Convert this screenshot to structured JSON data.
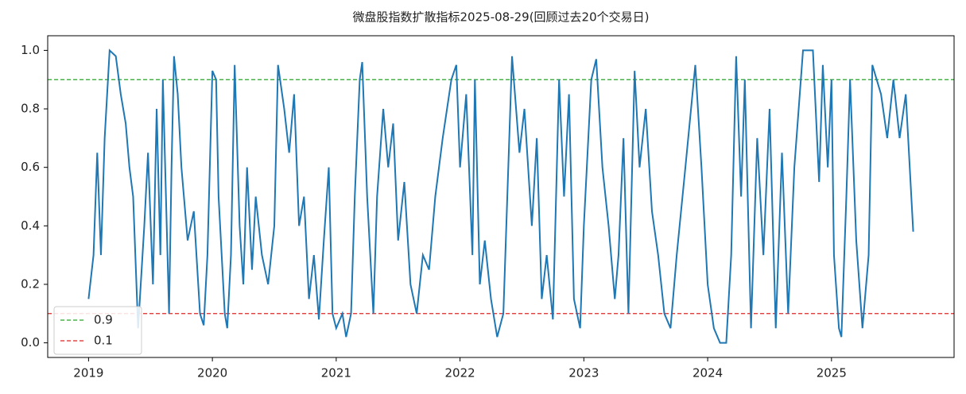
{
  "chart_data": {
    "type": "line",
    "title": "微盘股指数扩散指标2025-08-29(回顾过去20个交易日)",
    "x": [
      2019.0,
      2019.04,
      2019.07,
      2019.1,
      2019.13,
      2019.17,
      2019.22,
      2019.26,
      2019.3,
      2019.33,
      2019.36,
      2019.4,
      2019.45,
      2019.48,
      2019.52,
      2019.55,
      2019.58,
      2019.6,
      2019.65,
      2019.67,
      2019.69,
      2019.72,
      2019.75,
      2019.8,
      2019.85,
      2019.9,
      2019.93,
      2019.96,
      2020.0,
      2020.03,
      2020.05,
      2020.1,
      2020.12,
      2020.15,
      2020.18,
      2020.22,
      2020.25,
      2020.28,
      2020.32,
      2020.35,
      2020.4,
      2020.45,
      2020.5,
      2020.53,
      2020.58,
      2020.62,
      2020.66,
      2020.7,
      2020.74,
      2020.78,
      2020.82,
      2020.86,
      2020.9,
      2020.94,
      2020.97,
      2021.0,
      2021.05,
      2021.08,
      2021.12,
      2021.15,
      2021.19,
      2021.21,
      2021.25,
      2021.3,
      2021.33,
      2021.38,
      2021.42,
      2021.46,
      2021.5,
      2021.55,
      2021.6,
      2021.65,
      2021.7,
      2021.75,
      2021.8,
      2021.86,
      2021.93,
      2021.97,
      2022.0,
      2022.05,
      2022.1,
      2022.12,
      2022.16,
      2022.2,
      2022.25,
      2022.3,
      2022.35,
      2022.42,
      2022.48,
      2022.52,
      2022.58,
      2022.62,
      2022.66,
      2022.7,
      2022.75,
      2022.8,
      2022.84,
      2022.88,
      2022.92,
      2022.97,
      2023.0,
      2023.06,
      2023.1,
      2023.15,
      2023.2,
      2023.25,
      2023.28,
      2023.32,
      2023.36,
      2023.41,
      2023.45,
      2023.5,
      2023.55,
      2023.6,
      2023.65,
      2023.7,
      2023.75,
      2023.82,
      2023.9,
      2023.95,
      2024.0,
      2024.05,
      2024.1,
      2024.15,
      2024.19,
      2024.23,
      2024.27,
      2024.3,
      2024.35,
      2024.4,
      2024.45,
      2024.5,
      2024.55,
      2024.6,
      2024.65,
      2024.7,
      2024.77,
      2024.85,
      2024.9,
      2024.93,
      2024.97,
      2025.0,
      2025.02,
      2025.06,
      2025.08,
      2025.12,
      2025.15,
      2025.2,
      2025.25,
      2025.3,
      2025.33,
      2025.4,
      2025.45,
      2025.5,
      2025.55,
      2025.6,
      2025.66
    ],
    "series": [
      {
        "color": "#1f77b4",
        "values": [
          0.15,
          0.3,
          0.65,
          0.3,
          0.7,
          1.0,
          0.98,
          0.85,
          0.75,
          0.6,
          0.5,
          0.05,
          0.4,
          0.65,
          0.2,
          0.8,
          0.3,
          0.9,
          0.1,
          0.6,
          0.98,
          0.85,
          0.6,
          0.35,
          0.45,
          0.1,
          0.06,
          0.3,
          0.93,
          0.9,
          0.5,
          0.1,
          0.05,
          0.3,
          0.95,
          0.4,
          0.2,
          0.6,
          0.25,
          0.5,
          0.3,
          0.2,
          0.4,
          0.95,
          0.8,
          0.65,
          0.85,
          0.4,
          0.5,
          0.15,
          0.3,
          0.08,
          0.35,
          0.6,
          0.1,
          0.05,
          0.1,
          0.02,
          0.1,
          0.5,
          0.9,
          0.96,
          0.5,
          0.1,
          0.5,
          0.8,
          0.6,
          0.75,
          0.35,
          0.55,
          0.2,
          0.1,
          0.3,
          0.25,
          0.5,
          0.7,
          0.9,
          0.95,
          0.6,
          0.85,
          0.3,
          0.9,
          0.2,
          0.35,
          0.15,
          0.02,
          0.1,
          0.98,
          0.65,
          0.8,
          0.4,
          0.7,
          0.15,
          0.3,
          0.08,
          0.9,
          0.5,
          0.85,
          0.15,
          0.05,
          0.4,
          0.9,
          0.97,
          0.6,
          0.4,
          0.15,
          0.3,
          0.7,
          0.1,
          0.93,
          0.6,
          0.8,
          0.45,
          0.3,
          0.1,
          0.05,
          0.3,
          0.6,
          0.95,
          0.6,
          0.2,
          0.05,
          0.0,
          0.0,
          0.3,
          0.98,
          0.5,
          0.9,
          0.05,
          0.7,
          0.3,
          0.8,
          0.05,
          0.65,
          0.1,
          0.6,
          1.0,
          1.0,
          0.55,
          0.95,
          0.6,
          0.9,
          0.3,
          0.05,
          0.02,
          0.5,
          0.9,
          0.35,
          0.05,
          0.3,
          0.95,
          0.85,
          0.7,
          0.9,
          0.7,
          0.85,
          0.38
        ]
      }
    ],
    "hlines": [
      {
        "name": "0.9",
        "value": 0.9,
        "color": "#2ca02c"
      },
      {
        "name": "0.1",
        "value": 0.1,
        "color": "#d62728"
      }
    ],
    "xlim": [
      2018.67,
      2025.99
    ],
    "xticks": [
      2019,
      2020,
      2021,
      2022,
      2023,
      2024,
      2025
    ],
    "ylim": [
      -0.05,
      1.05
    ],
    "yticks": [
      {
        "value": 0,
        "label": "0.0"
      },
      0.2,
      0.4,
      0.6,
      0.8,
      {
        "value": 1,
        "label": "1.0"
      }
    ],
    "legend": "lower left"
  }
}
